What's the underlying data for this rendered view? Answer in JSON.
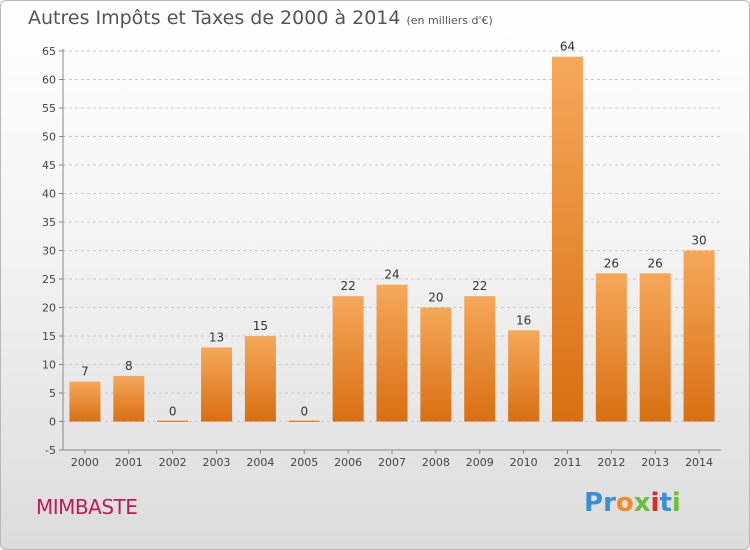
{
  "chart_data": {
    "type": "bar",
    "title": "Autres Impôts et Taxes de 2000 à 2014",
    "subtitle": "(en milliers d'€)",
    "categories": [
      "2000",
      "2001",
      "2002",
      "2003",
      "2004",
      "2005",
      "2006",
      "2007",
      "2008",
      "2009",
      "2010",
      "2011",
      "2012",
      "2013",
      "2014"
    ],
    "values": [
      7,
      8,
      0,
      13,
      15,
      0,
      22,
      24,
      20,
      22,
      16,
      64,
      26,
      26,
      30
    ],
    "data_labels": [
      "7",
      "8",
      "0",
      "13",
      "15",
      "0",
      "22",
      "24",
      "20",
      "22",
      "16",
      "64",
      "26",
      "26",
      "30"
    ],
    "ylim": [
      -5,
      65
    ],
    "yticks": [
      "-5",
      "0",
      "5",
      "10",
      "15",
      "20",
      "25",
      "30",
      "35",
      "40",
      "45",
      "50",
      "55",
      "60",
      "65"
    ],
    "grid": "horizontal dashed",
    "bar_color": "#f0923a"
  },
  "footer": {
    "commune": "MIMBASTE",
    "logo": "Proxiti",
    "logo_colors": [
      "#3a8fd8",
      "#3a8fd8",
      "#f28c1e",
      "#6cbf3a",
      "#e2262a",
      "#3a8fd8",
      "#6cbf3a"
    ]
  }
}
